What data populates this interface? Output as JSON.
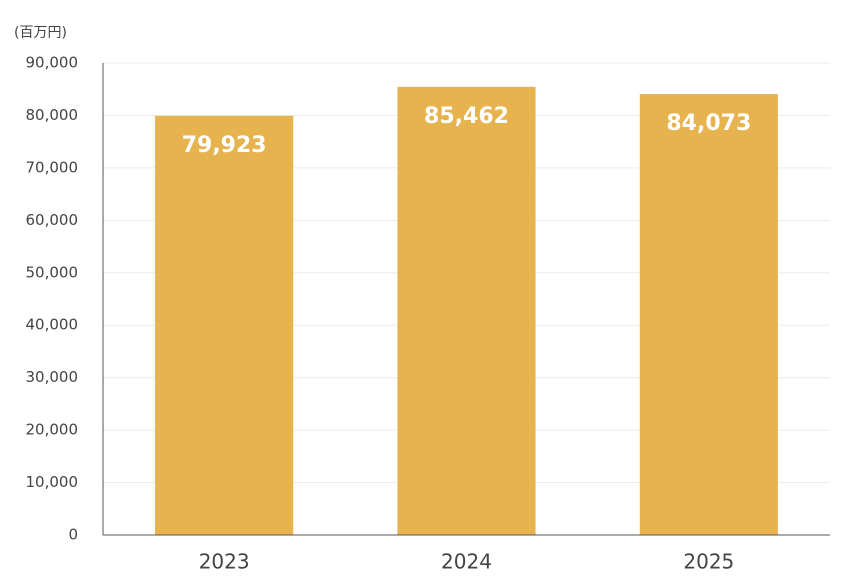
{
  "chart_data": {
    "type": "bar",
    "y_unit_label": "(百万円)",
    "categories": [
      "2023",
      "2024",
      "2025"
    ],
    "values": [
      79923,
      85462,
      84073
    ],
    "value_labels": [
      "79,923",
      "85,462",
      "84,073"
    ],
    "color": "#e6b34f",
    "ylim": [
      0,
      90000
    ],
    "yticks": [
      0,
      {
        "value": 10000,
        "label": "10,000"
      },
      {
        "value": 20000,
        "label": "20,000"
      },
      {
        "value": 30000,
        "label": "30,000"
      },
      {
        "value": 40000,
        "label": "40,000"
      },
      {
        "value": 50000,
        "label": "50,000"
      },
      {
        "value": 60000,
        "label": "60,000"
      },
      {
        "value": 70000,
        "label": "70,000"
      },
      {
        "value": 80000,
        "label": "80,000"
      },
      {
        "value": 90000,
        "label": "90,000"
      }
    ],
    "grid": true
  }
}
